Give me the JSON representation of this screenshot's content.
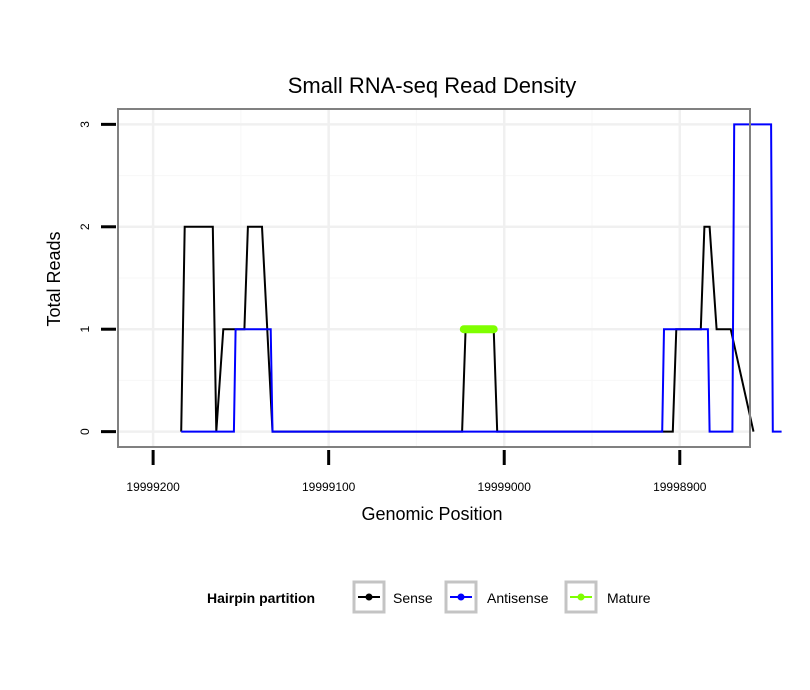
{
  "chart_data": {
    "type": "line",
    "title": "Small RNA-seq Read Density",
    "xlabel": "Genomic Position",
    "ylabel": "Total Reads",
    "xlim": [
      19999220,
      19998860
    ],
    "ylim": [
      -0.15,
      3.15
    ],
    "x_reversed": true,
    "x_ticks": [
      19999200,
      19999100,
      19999000,
      19998900
    ],
    "x_tick_labels": [
      "19999200",
      "19999100",
      "19999000",
      "19998900"
    ],
    "y_ticks": [
      0,
      1,
      2,
      3
    ],
    "y_tick_labels": [
      "0",
      "1",
      "2",
      "3"
    ],
    "grid": true,
    "legend_position": "bottom",
    "legend_title": "Hairpin partition",
    "series": [
      {
        "name": "Sense",
        "color": "#000000",
        "x": [
          19999184,
          19999182,
          19999166,
          19999164,
          19999160,
          19999148,
          19999146,
          19999138,
          19999132,
          19999110,
          19999024,
          19999022,
          19999006,
          19999004,
          19998904,
          19998902,
          19998888,
          19998886,
          19998883,
          19998879,
          19998871,
          19998858
        ],
        "y": [
          0,
          2,
          2,
          0,
          1,
          1,
          2,
          2,
          0,
          0,
          0,
          1,
          1,
          0,
          0,
          1,
          1,
          2,
          2,
          1,
          1,
          0
        ]
      },
      {
        "name": "Antisense",
        "color": "#0000ff",
        "x": [
          19999184,
          19999154,
          19999153,
          19999133,
          19999132,
          19998910,
          19998909,
          19998884,
          19998883,
          19998870,
          19998869,
          19998848,
          19998847,
          19998842
        ],
        "y": [
          0,
          0,
          1,
          1,
          0,
          0,
          1,
          1,
          0,
          0,
          3,
          3,
          0,
          0
        ]
      },
      {
        "name": "Mature",
        "color": "#7fff00",
        "x": [
          19999023,
          19999006
        ],
        "y": [
          1,
          1
        ]
      }
    ]
  }
}
